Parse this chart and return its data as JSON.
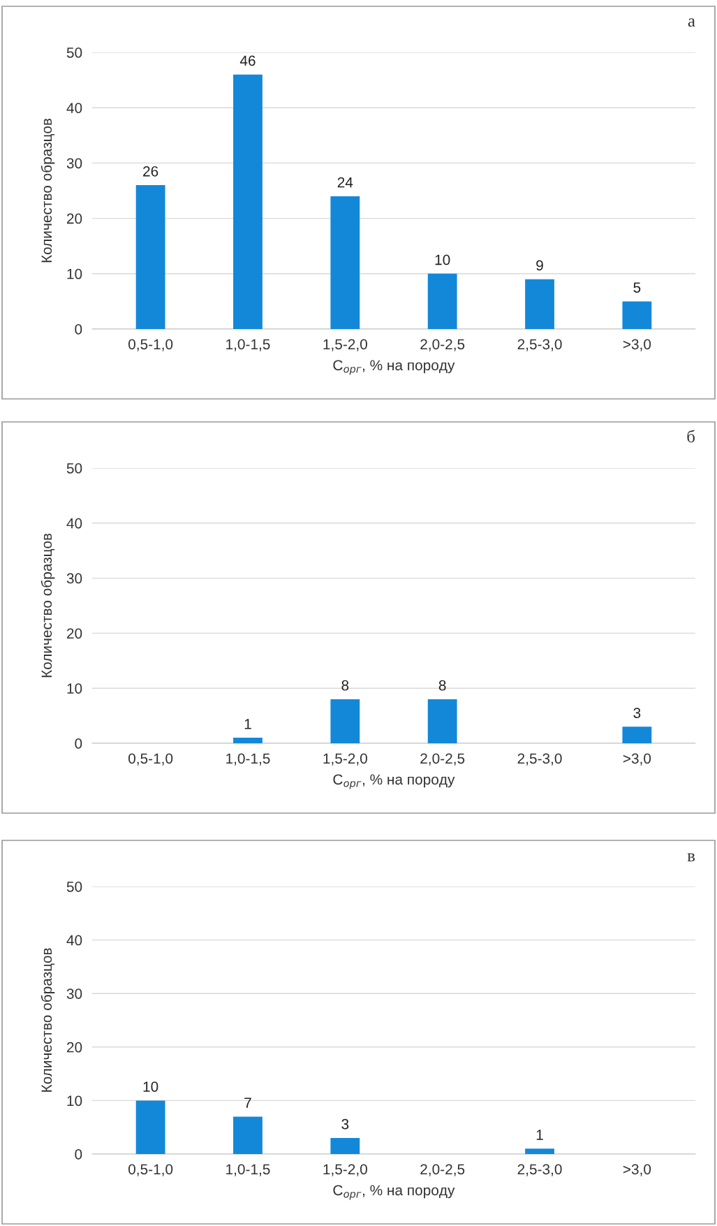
{
  "chart_data": [
    {
      "type": "bar",
      "categories": [
        "0,5-1,0",
        "1,0-1,5",
        "1,5-2,0",
        "2,0-2,5",
        "2,5-3,0",
        ">3,0"
      ],
      "values": [
        26,
        46,
        24,
        10,
        9,
        5
      ],
      "color": "#1388d8",
      "data_labels": true,
      "xlabel": "C$_{орг}$, % на породу",
      "ylabel": "Количество образцов",
      "ylim": [
        0,
        50
      ],
      "yticks": [
        0,
        10,
        20,
        30,
        40,
        50
      ],
      "grid": "y",
      "legend": false,
      "annotations": [
        "а"
      ]
    },
    {
      "type": "bar",
      "categories": [
        "0,5-1,0",
        "1,0-1,5",
        "1,5-2,0",
        "2,0-2,5",
        "2,5-3,0",
        ">3,0"
      ],
      "values": [
        0,
        1,
        8,
        8,
        0,
        3
      ],
      "value_labels": [
        null,
        "1",
        "8",
        "8",
        null,
        "3"
      ],
      "color": "#1388d8",
      "xlabel": "C$_{орг}$, % на породу",
      "ylabel": "Количество образцов",
      "ylim": [
        0,
        50
      ],
      "yticks": [
        0,
        10,
        20,
        30,
        40,
        50
      ],
      "grid": "y",
      "legend": false,
      "annotations": [
        "б"
      ]
    },
    {
      "type": "bar",
      "categories": [
        "0,5-1,0",
        "1,0-1,5",
        "1,5-2,0",
        "2,0-2,5",
        "2,5-3,0",
        ">3,0"
      ],
      "values": [
        10,
        7,
        3,
        0,
        1,
        0
      ],
      "value_labels": [
        "10",
        "7",
        "3",
        null,
        "1",
        null
      ],
      "color": "#1388d8",
      "xlabel": "C$_{орг}$, % на породу",
      "ylabel": "Количество образцов",
      "ylim": [
        0,
        50
      ],
      "yticks": [
        0,
        10,
        20,
        30,
        40,
        50
      ],
      "grid": "y",
      "legend": false,
      "annotations": [
        "в"
      ]
    }
  ]
}
